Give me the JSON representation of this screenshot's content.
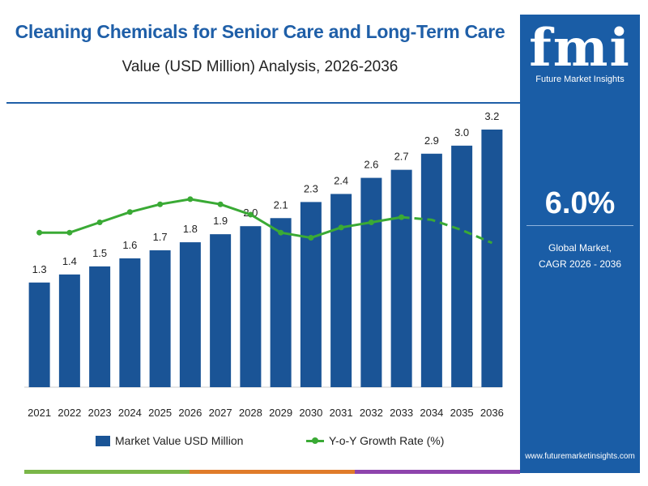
{
  "header": {
    "title": "Cleaning Chemicals for Senior Care and Long-Term Care",
    "subtitle": "Value (USD Million) Analysis, 2026-2036"
  },
  "legend": {
    "bar_label": "Market Value USD Million",
    "line_label": "Y-o-Y Growth Rate (%)"
  },
  "side_panel": {
    "logo_text": "fmi",
    "brand_name": "Future Market Insights",
    "cagr_value": "6.0%",
    "cagr_label_line1": "Global Market,",
    "cagr_label_line2": "CAGR 2026 - 2036",
    "website": "www.futuremarketinsights.com"
  },
  "colors": {
    "bar": "#1a5496",
    "line": "#3aaa35",
    "title": "#1f5fa8",
    "panel": "#1a5da6",
    "stripe": [
      "#7ab648",
      "#e07b2a",
      "#8e44ad"
    ]
  },
  "chart_data": {
    "type": "bar",
    "title": "Cleaning Chemicals for Senior Care and Long-Term Care",
    "subtitle": "Value (USD Million) Analysis, 2026-2036",
    "categories": [
      "2021",
      "2022",
      "2023",
      "2024",
      "2025",
      "2026",
      "2027",
      "2028",
      "2029",
      "2030",
      "2031",
      "2032",
      "2033",
      "2034",
      "2035",
      "2036"
    ],
    "labels": [
      "1.3",
      "1.4",
      "1.5",
      "1.6",
      "1.7",
      "1.8",
      "1.9",
      "2.0",
      "2.1",
      "2.3",
      "2.4",
      "2.6",
      "2.7",
      "2.9",
      "3.0",
      "3.2"
    ],
    "series": [
      {
        "name": "Market Value USD Million",
        "type": "bar",
        "values": [
          1.3,
          1.4,
          1.5,
          1.6,
          1.7,
          1.8,
          1.9,
          2.0,
          2.1,
          2.3,
          2.4,
          2.6,
          2.7,
          2.9,
          3.0,
          3.2
        ]
      },
      {
        "name": "Y-o-Y Growth Rate (%)",
        "type": "line",
        "values": [
          6.0,
          6.0,
          6.4,
          6.8,
          7.1,
          7.3,
          7.1,
          6.7,
          6.0,
          5.8,
          6.2,
          6.4,
          6.6,
          6.5,
          6.1,
          5.6
        ],
        "dashed_from_index": 12
      }
    ],
    "ylim": [
      0,
      3.3
    ],
    "y2lim": [
      0,
      10
    ],
    "grid": false,
    "legend_position": "bottom"
  }
}
